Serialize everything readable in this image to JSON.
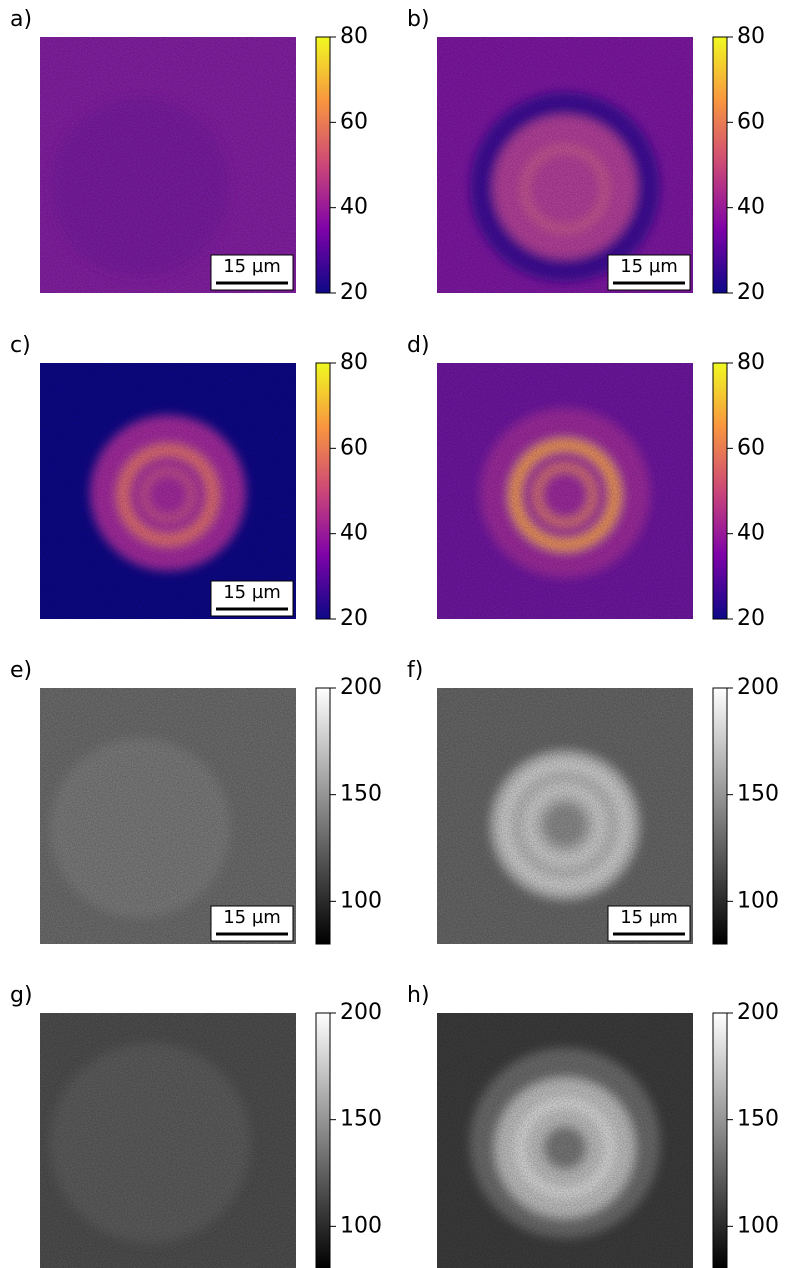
{
  "chart_data": [
    {
      "type": "image",
      "label": "a)",
      "cmap": "plasma",
      "ylim": [
        20,
        80
      ],
      "yticks": [
        20,
        40,
        60,
        80
      ],
      "scalebar": "15 µm"
    },
    {
      "type": "image",
      "label": "b)",
      "cmap": "plasma",
      "ylim": [
        20,
        80
      ],
      "yticks": [
        20,
        40,
        60,
        80
      ],
      "scalebar": "15 µm"
    },
    {
      "type": "image",
      "label": "c)",
      "cmap": "plasma",
      "ylim": [
        20,
        80
      ],
      "yticks": [
        20,
        40,
        60,
        80
      ],
      "scalebar": "15 µm"
    },
    {
      "type": "image",
      "label": "d)",
      "cmap": "plasma",
      "ylim": [
        20,
        80
      ],
      "yticks": [
        20,
        40,
        60,
        80
      ]
    },
    {
      "type": "image",
      "label": "e)",
      "cmap": "gray",
      "ylim": [
        80,
        200
      ],
      "yticks": [
        100,
        150,
        200
      ],
      "scalebar": "15 µm"
    },
    {
      "type": "image",
      "label": "f)",
      "cmap": "gray",
      "ylim": [
        80,
        200
      ],
      "yticks": [
        100,
        150,
        200
      ],
      "scalebar": "15 µm"
    },
    {
      "type": "image",
      "label": "g)",
      "cmap": "gray",
      "ylim": [
        80,
        200
      ],
      "yticks": [
        100,
        150,
        200
      ]
    },
    {
      "type": "image",
      "label": "h)",
      "cmap": "gray",
      "ylim": [
        80,
        200
      ],
      "yticks": [
        100,
        150,
        200
      ]
    }
  ]
}
